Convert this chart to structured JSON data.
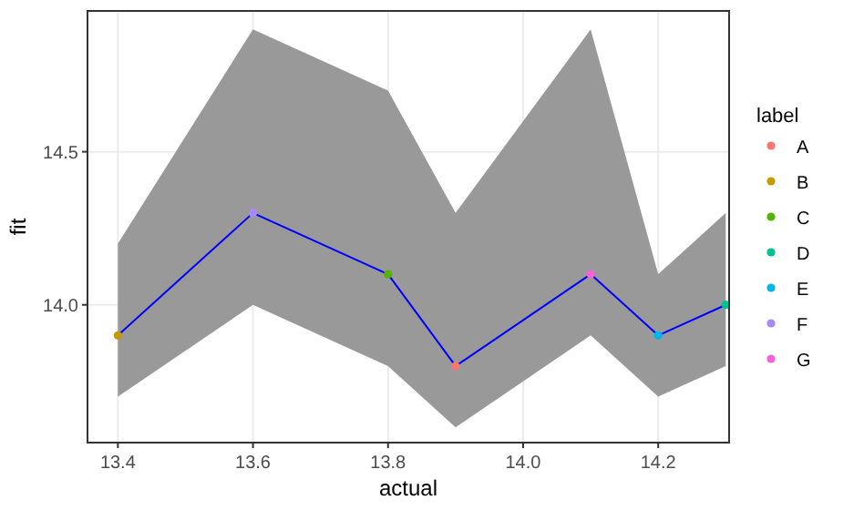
{
  "chart_data": {
    "type": "scatter",
    "xlabel": "actual",
    "ylabel": "fit",
    "legend_title": "label",
    "legend": "right",
    "grid": true,
    "marker": "circle",
    "xlim": [
      13.355,
      14.305
    ],
    "xticks": [
      13.4,
      13.6,
      13.8,
      {
        "value": 14,
        "label": "14.0"
      },
      14.2
    ],
    "ylim": [
      13.55,
      14.96
    ],
    "yticks": [
      {
        "value": 14,
        "label": "14.0"
      },
      14.5
    ],
    "series": [
      {
        "type": "line",
        "color": "#0000ff",
        "marker": "none",
        "x": [
          13.4,
          13.6,
          13.8,
          13.9,
          14.1,
          14.2,
          14.3
        ],
        "values": [
          13.9,
          14.3,
          14.1,
          13.8,
          14.1,
          13.9,
          14.0
        ],
        "lower": [
          13.7,
          14.0,
          13.8,
          13.6,
          13.9,
          13.7,
          13.8
        ],
        "upper": [
          14.2,
          14.9,
          14.7,
          14.3,
          14.9,
          14.1,
          14.3
        ]
      },
      {
        "name": "A",
        "color": "#f8766d",
        "x": [
          13.9
        ],
        "values": [
          13.8
        ]
      },
      {
        "name": "B",
        "color": "#c49a00",
        "x": [
          13.4
        ],
        "values": [
          13.9
        ]
      },
      {
        "name": "C",
        "color": "#53b400",
        "x": [
          13.8
        ],
        "values": [
          14.1
        ]
      },
      {
        "name": "D",
        "color": "#00c094",
        "x": [
          14.3
        ],
        "values": [
          14.0
        ]
      },
      {
        "name": "E",
        "color": "#00b6eb",
        "x": [
          14.2
        ],
        "values": [
          13.9
        ]
      },
      {
        "name": "F",
        "color": "#a58aff",
        "x": [
          13.6
        ],
        "values": [
          14.3
        ]
      },
      {
        "name": "G",
        "color": "#fb61d7",
        "x": [
          14.1
        ],
        "values": [
          14.1
        ]
      }
    ]
  }
}
